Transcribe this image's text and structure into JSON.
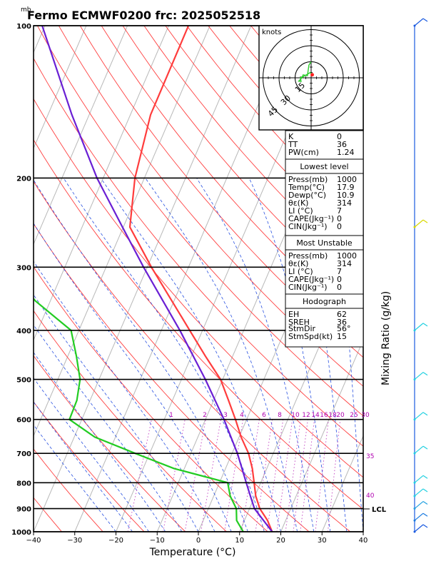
{
  "title": "Fermo ECMWF0200  frc: 2025052518",
  "pressure_unit": "mb",
  "xlabel": "Temperature (°C)",
  "mixing_ratio_label": "Mixing Ratio (g/kg)",
  "hodograph": {
    "unit_label": "knots",
    "ring_labels": [
      "15",
      "30",
      "45"
    ]
  },
  "mixing_ratio_values": [
    "1",
    "2",
    "3",
    "4",
    "6",
    "8",
    "10",
    "12",
    "14",
    "16",
    "18",
    "20",
    "25",
    "30"
  ],
  "theta_labels": [
    "30",
    "35",
    "40"
  ],
  "lcl_label": "LCL",
  "indices": {
    "top": [
      {
        "k": "K",
        "v": "0"
      },
      {
        "k": "TT",
        "v": "36"
      },
      {
        "k": "PW(cm)",
        "v": "1.24"
      }
    ],
    "lowest_title": "Lowest level",
    "lowest": [
      {
        "k": "Press(mb)",
        "v": "1000"
      },
      {
        "k": "Temp(°C)",
        "v": "17.9"
      },
      {
        "k": "Dewp(°C)",
        "v": "10.9"
      },
      {
        "k": "θε(K)",
        "v": "314"
      },
      {
        "k": "LI (°C)",
        "v": "7"
      },
      {
        "k": "CAPE(Jkg⁻¹)",
        "v": "0"
      },
      {
        "k": "CIN(Jkg⁻¹)",
        "v": "0"
      }
    ],
    "mu_title": "Most Unstable",
    "mu": [
      {
        "k": "Press(mb)",
        "v": "1000"
      },
      {
        "k": "θε(K)",
        "v": "314"
      },
      {
        "k": "LI (°C)",
        "v": "7"
      },
      {
        "k": "CAPE(Jkg⁻¹)",
        "v": "0"
      },
      {
        "k": "CIN(Jkg⁻¹)",
        "v": "0"
      }
    ],
    "hodo_title": "Hodograph",
    "hodo": [
      {
        "k": "EH",
        "v": "62"
      },
      {
        "k": "SREH",
        "v": "36"
      },
      {
        "k": "StmDir",
        "v": "56°"
      },
      {
        "k": "StmSpd(kt)",
        "v": "15"
      }
    ]
  },
  "chart_data": {
    "type": "line",
    "title": "Fermo ECMWF0200  frc: 2025052518",
    "xlabel": "Temperature (°C)",
    "ylabel": "mb",
    "x_ticks": [
      -40,
      -30,
      -20,
      -10,
      0,
      10,
      20,
      30,
      40
    ],
    "y_ticks": [
      100,
      200,
      300,
      400,
      500,
      600,
      700,
      800,
      900,
      1000
    ],
    "xlim": [
      -40,
      40
    ],
    "ylim": [
      1000,
      100
    ],
    "y_scale": "log",
    "series": [
      {
        "name": "Temperature",
        "color": "#ff3c3c",
        "points": [
          [
            1000,
            17.9
          ],
          [
            950,
            15.6
          ],
          [
            900,
            12.5
          ],
          [
            850,
            10.2
          ],
          [
            800,
            8.4
          ],
          [
            750,
            6.5
          ],
          [
            700,
            4.0
          ],
          [
            650,
            0.5
          ],
          [
            600,
            -2.7
          ],
          [
            550,
            -6.4
          ],
          [
            500,
            -10.5
          ],
          [
            450,
            -16.6
          ],
          [
            400,
            -23.1
          ],
          [
            350,
            -30.5
          ],
          [
            300,
            -39.0
          ],
          [
            250,
            -48.4
          ],
          [
            200,
            -52.3
          ],
          [
            150,
            -55.1
          ],
          [
            100,
            -55.2
          ]
        ]
      },
      {
        "name": "Dewpoint",
        "color": "#22cc22",
        "points": [
          [
            1000,
            10.9
          ],
          [
            950,
            8.1
          ],
          [
            900,
            6.8
          ],
          [
            850,
            4.0
          ],
          [
            800,
            2.0
          ],
          [
            750,
            -12.5
          ],
          [
            700,
            -23.5
          ],
          [
            650,
            -35.0
          ],
          [
            600,
            -43.0
          ],
          [
            550,
            -43.2
          ],
          [
            500,
            -44.6
          ],
          [
            450,
            -47.9
          ],
          [
            400,
            -51.9
          ],
          [
            350,
            -63.6
          ],
          [
            300,
            -74.1
          ],
          [
            250,
            -83.6
          ],
          [
            200,
            -93.7
          ],
          [
            150,
            -105.9
          ],
          [
            100,
            -121.2
          ]
        ]
      },
      {
        "name": "Parcel",
        "color": "#6a1fd4",
        "points": [
          [
            1000,
            17.9
          ],
          [
            900,
            11.2
          ],
          [
            850,
            8.9
          ],
          [
            800,
            6.5
          ],
          [
            700,
            1.3
          ],
          [
            600,
            -5.5
          ],
          [
            500,
            -14.2
          ],
          [
            400,
            -25.5
          ],
          [
            300,
            -40.9
          ],
          [
            250,
            -50.2
          ],
          [
            200,
            -61.5
          ],
          [
            150,
            -74.2
          ],
          [
            100,
            -90.7
          ]
        ]
      }
    ],
    "hodograph": {
      "wind_dir_deg": [
        200,
        170,
        95,
        75,
        70,
        90,
        100,
        110,
        120,
        170,
        180
      ],
      "wind_speed_kt": [
        3,
        5,
        8,
        12,
        10,
        10,
        8,
        8,
        4,
        12,
        15
      ]
    },
    "lcl_pressure": 905
  }
}
